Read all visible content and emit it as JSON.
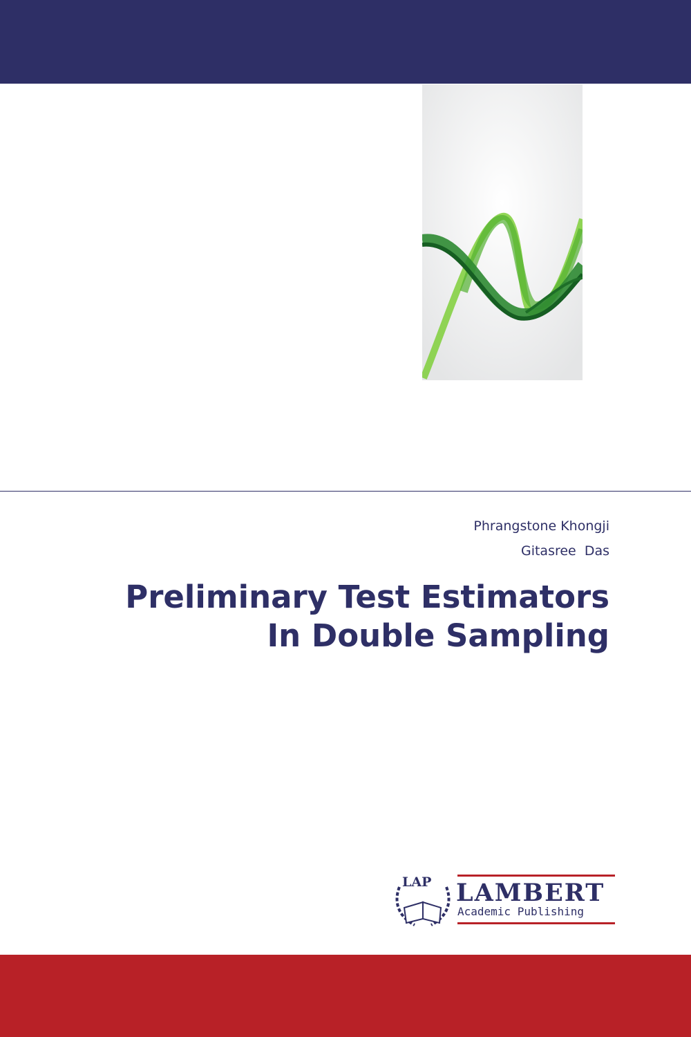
{
  "colors": {
    "top_band": "#2e2f66",
    "bottom_band": "#b82127",
    "text": "#2e2f66"
  },
  "authors": [
    "Phrangstone Khongji",
    "Gitasree  Das"
  ],
  "title_lines": [
    "Preliminary Test Estimators",
    "In Double Sampling"
  ],
  "publisher": {
    "emblem": "LAP",
    "name": "LAMBERT",
    "subtitle": "Academic Publishing"
  }
}
